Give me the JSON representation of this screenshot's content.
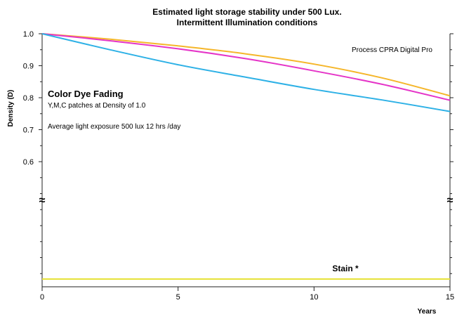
{
  "chart_data": {
    "type": "line",
    "title_line1": "Estimated light storage stability under 500 Lux.",
    "title_line2": "Intermittent Illumination conditions",
    "xlabel": "Years",
    "ylabel": "Density (D)",
    "xlim": [
      0,
      15
    ],
    "ylim": [
      0.6,
      1.0
    ],
    "x_ticks": [
      "0",
      "5",
      "10",
      "15"
    ],
    "y_ticks": [
      "1.0",
      "0.9",
      "0.8",
      "0.7",
      "0.6"
    ],
    "axis_break_symbol": "≈",
    "grid": false,
    "x": [
      0,
      2.5,
      5,
      7.5,
      10,
      12.5,
      15
    ],
    "series": [
      {
        "color": "#f5b62a",
        "values": [
          1.0,
          0.983,
          0.962,
          0.937,
          0.905,
          0.862,
          0.806
        ]
      },
      {
        "color": "#e535c8",
        "values": [
          1.0,
          0.978,
          0.953,
          0.922,
          0.884,
          0.842,
          0.792
        ]
      },
      {
        "color": "#2eb1e6",
        "values": [
          1.0,
          0.95,
          0.903,
          0.864,
          0.826,
          0.793,
          0.757
        ]
      }
    ],
    "stain": {
      "label": "Stain *",
      "color": "#e6e23a",
      "level": 0.0
    },
    "annotations": {
      "process": "Process CPRA Digital Pro",
      "fade_title": "Color Dye Fading",
      "fade_sub": "Y,M,C patches at Density of 1.0",
      "exposure": "Average light exposure 500 lux 12 hrs /day"
    }
  }
}
